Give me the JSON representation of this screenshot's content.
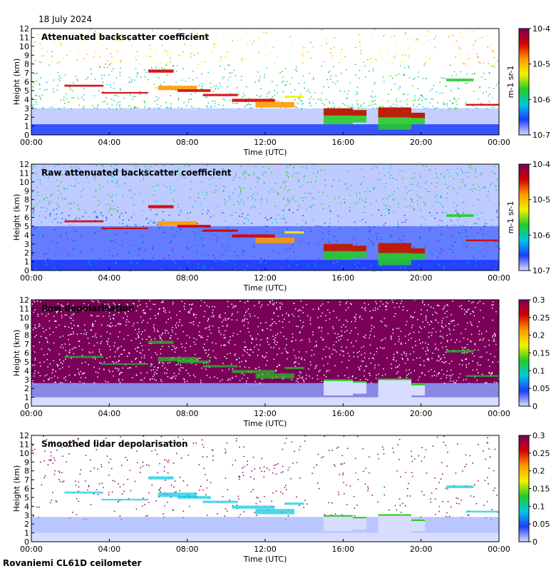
{
  "date_label": "18 July 2024",
  "footer_label": "Rovaniemi CL61D ceilometer",
  "colors": {
    "cloud_red": "#d40000",
    "orange": "#ff9900",
    "yellow": "#f2f200",
    "green": "#22cc22",
    "cyan": "#00c8e0",
    "blue": "#1e3cff",
    "light_blue": "#8aa0ff",
    "very_light": "#d8dcff",
    "purple": "#7a0059"
  },
  "chart_data": [
    {
      "type": "heatmap",
      "title": "Attenuated backscatter coefficient",
      "xlabel": "Time (UTC)",
      "ylabel": "Height (km)",
      "x_ticks": [
        "00:00",
        "04:00",
        "08:00",
        "12:00",
        "16:00",
        "20:00",
        "00:00"
      ],
      "xlim": [
        0,
        24
      ],
      "y_ticks": [
        "0",
        "1",
        "2",
        "3",
        "4",
        "5",
        "6",
        "7",
        "8",
        "9",
        "10",
        "11",
        "12"
      ],
      "ylim": [
        0,
        12
      ],
      "colorbar": {
        "scale": "log",
        "range": [
          1e-07,
          0.0001
        ],
        "tick_labels": [
          "10-7",
          "10-6",
          "10-5",
          "10-4"
        ],
        "label": "m-1 sr-1"
      }
    },
    {
      "type": "heatmap",
      "title": "Raw attenuated backscatter coefficient",
      "xlabel": "Time (UTC)",
      "ylabel": "Height (km)",
      "x_ticks": [
        "00:00",
        "04:00",
        "08:00",
        "12:00",
        "16:00",
        "20:00",
        "00:00"
      ],
      "xlim": [
        0,
        24
      ],
      "y_ticks": [
        "0",
        "1",
        "2",
        "3",
        "4",
        "5",
        "6",
        "7",
        "8",
        "9",
        "10",
        "11",
        "12"
      ],
      "ylim": [
        0,
        12
      ],
      "colorbar": {
        "scale": "log",
        "range": [
          1e-07,
          0.0001
        ],
        "tick_labels": [
          "10-7",
          "10-6",
          "10-5",
          "10-4"
        ],
        "label": "m-1 sr-1"
      }
    },
    {
      "type": "heatmap",
      "title": "Raw depolarisation",
      "xlabel": "Time (UTC)",
      "ylabel": "Height (km)",
      "x_ticks": [
        "00:00",
        "04:00",
        "08:00",
        "12:00",
        "16:00",
        "20:00",
        "00:00"
      ],
      "xlim": [
        0,
        24
      ],
      "y_ticks": [
        "0",
        "1",
        "2",
        "3",
        "4",
        "5",
        "6",
        "7",
        "8",
        "9",
        "10",
        "11",
        "12"
      ],
      "ylim": [
        0,
        12
      ],
      "colorbar": {
        "scale": "linear",
        "range": [
          0,
          0.3
        ],
        "tick_labels": [
          "0",
          "0.05",
          "0.1",
          "0.15",
          "0.2",
          "0.25",
          "0.3"
        ]
      }
    },
    {
      "type": "heatmap",
      "title": "Smoothed lidar depolarisation",
      "xlabel": "Time (UTC)",
      "ylabel": "Height (km)",
      "x_ticks": [
        "00:00",
        "04:00",
        "08:00",
        "12:00",
        "16:00",
        "20:00",
        "00:00"
      ],
      "xlim": [
        0,
        24
      ],
      "y_ticks": [
        "0",
        "1",
        "2",
        "3",
        "4",
        "5",
        "6",
        "7",
        "8",
        "9",
        "10",
        "11",
        "12"
      ],
      "ylim": [
        0,
        12
      ],
      "colorbar": {
        "scale": "linear",
        "range": [
          0,
          0.3
        ],
        "tick_labels": [
          "0",
          "0.05",
          "0.1",
          "0.15",
          "0.2",
          "0.25",
          "0.3"
        ]
      }
    }
  ]
}
